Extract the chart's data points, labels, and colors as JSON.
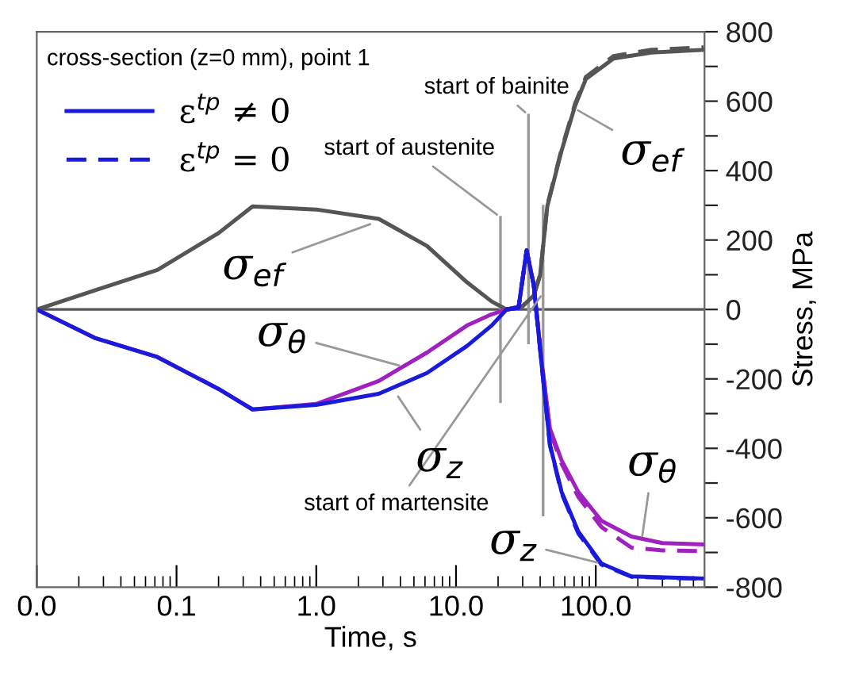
{
  "chart_data": {
    "type": "line",
    "title": "cross-section (z=0 mm), point 1",
    "xlabel": "Time, s",
    "ylabel": "Stress, MPa",
    "log": "x",
    "xlim": [
      0.01,
      600
    ],
    "xticks": [
      {
        "value": 0.01,
        "label": "0.0"
      },
      {
        "value": 0.1,
        "label": "0.1"
      },
      {
        "value": 1,
        "label": "1.0"
      },
      {
        "value": 10,
        "label": "10.0"
      },
      {
        "value": 100,
        "label": "100.0"
      }
    ],
    "ylim": [
      -800,
      800
    ],
    "yticks": [
      -800,
      {
        "value": -700,
        "label": null
      },
      -600,
      {
        "value": -500,
        "label": null
      },
      -400,
      {
        "value": -300,
        "label": null
      },
      -200,
      {
        "value": -100,
        "label": null
      },
      0,
      {
        "value": 100,
        "label": null
      },
      200,
      {
        "value": 300,
        "label": null
      },
      400,
      {
        "value": 500,
        "label": null
      },
      600,
      {
        "value": 700,
        "label": null
      },
      800
    ],
    "grid": false,
    "legend": "top left",
    "marker": "none",
    "series": [
      {
        "color": "#555555",
        "line_style": "solid",
        "x": [
          0.01,
          0.026,
          0.073,
          0.2,
          0.35,
          1.0,
          2.8,
          6.2,
          12,
          18,
          23,
          30,
          36,
          40,
          45,
          57,
          71,
          85,
          134,
          250,
          590
        ],
        "values": [
          0,
          55,
          114,
          220,
          297,
          288,
          261,
          183,
          78,
          23,
          0,
          10,
          40,
          100,
          297,
          458,
          586,
          664,
          723,
          740,
          748
        ]
      },
      {
        "color": "#555555",
        "line_style": "dashed",
        "x": [
          23,
          30,
          36,
          40,
          45,
          57,
          71,
          85,
          134,
          250,
          590
        ],
        "values": [
          0,
          10,
          40,
          100,
          300,
          462,
          592,
          670,
          730,
          748,
          755
        ]
      },
      {
        "color": "#a020c0",
        "line_style": "solid",
        "x": [
          0.01,
          0.026,
          0.073,
          0.2,
          0.35,
          1.0,
          2.8,
          6.2,
          12,
          18,
          23,
          28,
          32,
          36,
          41,
          47,
          57,
          75,
          110,
          180,
          300,
          590
        ],
        "values": [
          0,
          -82,
          -137,
          -229,
          -288,
          -272,
          -206,
          -124,
          -46,
          -14,
          0,
          5,
          170,
          70,
          -150,
          -343,
          -435,
          -526,
          -609,
          -654,
          -673,
          -677
        ]
      },
      {
        "color": "#a020c0",
        "line_style": "dashed",
        "x": [
          23,
          28,
          32,
          36,
          41,
          47,
          57,
          75,
          110,
          180,
          300,
          590
        ],
        "values": [
          0,
          5,
          170,
          70,
          -150,
          -350,
          -445,
          -540,
          -627,
          -686,
          -694,
          -696
        ]
      },
      {
        "name": "ε$^{tp}$ ≠ 0",
        "color": "#1a1adc",
        "line_style": "solid",
        "x": [
          0.01,
          0.026,
          0.073,
          0.2,
          0.35,
          1.0,
          2.8,
          6.2,
          12,
          18,
          23,
          28,
          32,
          36,
          41,
          47,
          57,
          75,
          110,
          180,
          590
        ],
        "values": [
          0,
          -82,
          -137,
          -229,
          -288,
          -275,
          -243,
          -183,
          -105,
          -46,
          0,
          5,
          170,
          70,
          -160,
          -390,
          -526,
          -640,
          -732,
          -769,
          -775
        ]
      },
      {
        "name": "ε$^{tp}$ = 0",
        "color": "#1a1adc",
        "line_style": "dashed",
        "x": [
          23,
          28,
          32,
          36,
          41,
          47,
          57,
          75,
          110,
          180,
          590
        ],
        "values": [
          0,
          5,
          170,
          70,
          -160,
          -392,
          -530,
          -645,
          -735,
          -770,
          -776
        ]
      }
    ],
    "ref_lines": [
      {
        "axis": "y",
        "value": 0,
        "color": "#555555",
        "line_style": "solid"
      },
      {
        "axis": "x",
        "value": 20.8,
        "label": "start of austenite",
        "color": "#999999",
        "line_style": "solid"
      },
      {
        "axis": "x",
        "value": 33,
        "label": "start of bainite",
        "color": "#999999",
        "line_style": "solid"
      },
      {
        "axis": "x",
        "value": 42,
        "label": "start of martensite",
        "color": "#999999",
        "line_style": "solid"
      }
    ],
    "annotations": [
      {
        "text": "σ$_{ef}$",
        "x": 2.6,
        "y": 250
      },
      {
        "text": "σ$_{ef}$",
        "x": 70,
        "y": 580
      },
      {
        "text": "σ$_{θ}$",
        "x": 4.2,
        "y": -165
      },
      {
        "text": "σ$_{z}$",
        "x": 3.7,
        "y": -240
      },
      {
        "text": "σ$_{θ}$",
        "x": 213,
        "y": -665
      },
      {
        "text": "σ$_{z}$",
        "x": 110,
        "y": -732
      }
    ]
  }
}
